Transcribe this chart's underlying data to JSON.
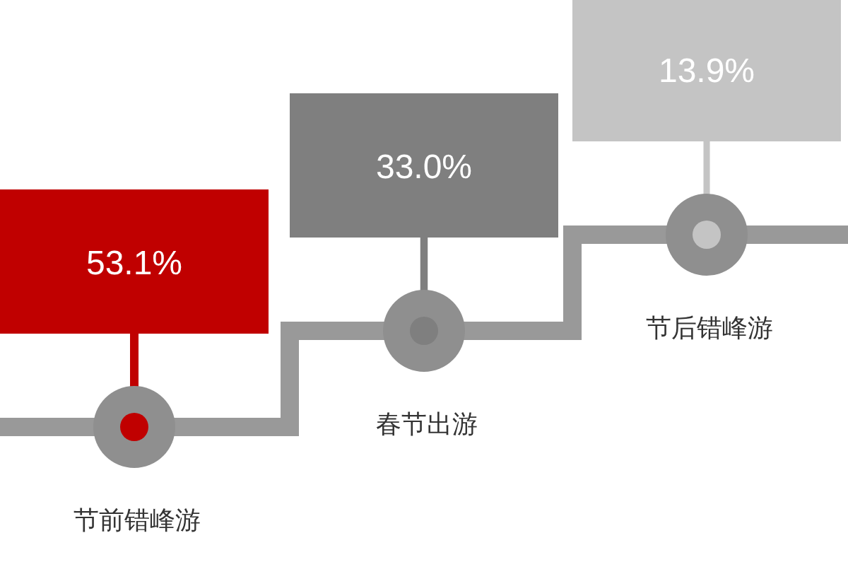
{
  "chart_data": {
    "type": "other",
    "categories": [
      "节前错峰游",
      "春节出游",
      "节后错峰游"
    ],
    "values": [
      53.1,
      33.0,
      13.9
    ],
    "value_labels": [
      "53.1%",
      "33.0%",
      "13.9%"
    ],
    "colors": [
      "#c00000",
      "#7f7f7f",
      "#c4c4c4"
    ]
  }
}
